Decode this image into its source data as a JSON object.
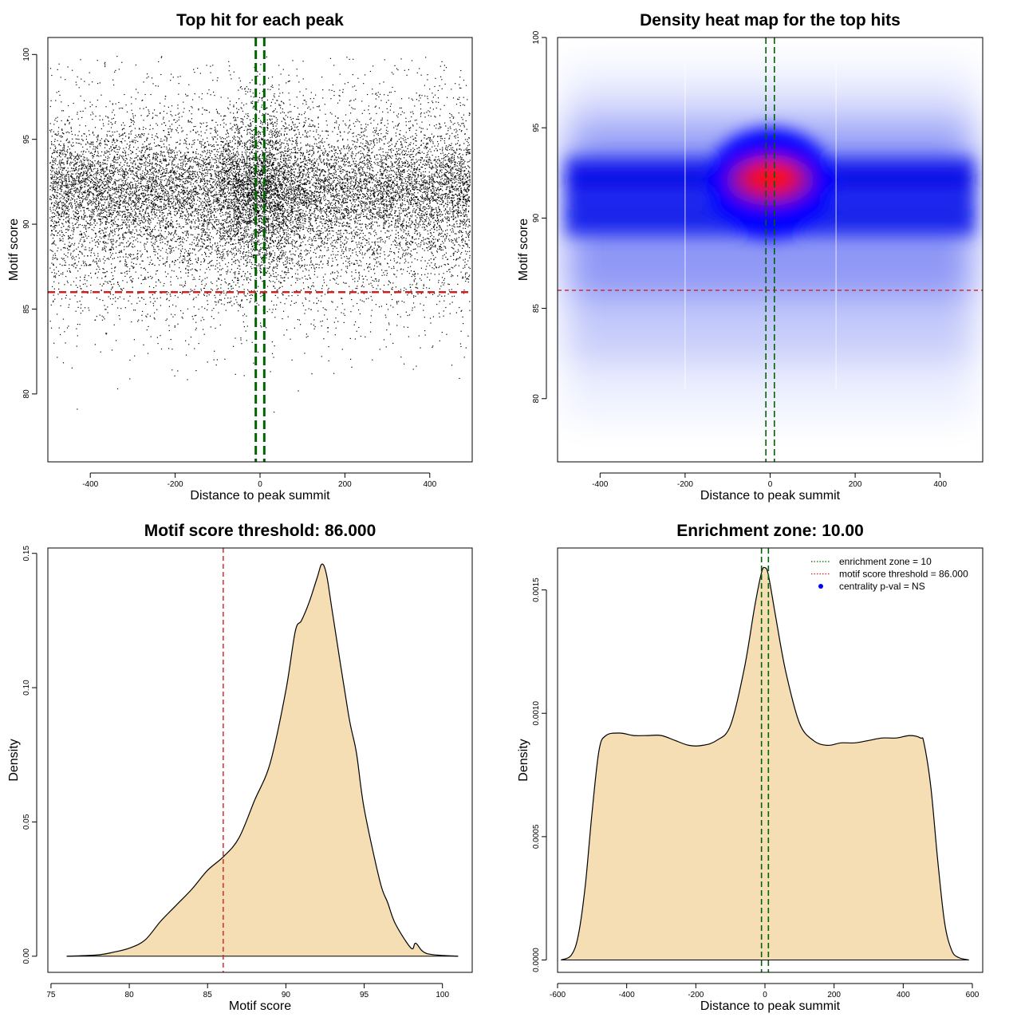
{
  "colors": {
    "threshold_line": "#cc2222",
    "zone_line": "#006400",
    "density_fill": "#f5deb3",
    "heat_low": "#ffffff",
    "heat_mid": "#0000ff",
    "heat_high": "#ff0000",
    "pval_marker": "#0000ff"
  },
  "chart_data": [
    {
      "id": "scatter",
      "type": "scatter",
      "title": "Top hit for each peak",
      "xlabel": "Distance to peak summit",
      "ylabel": "Motif score",
      "xlim": [
        -500,
        500
      ],
      "ylim": [
        76,
        101
      ],
      "xticks": [
        -400,
        -200,
        0,
        200,
        400
      ],
      "yticks": [
        80,
        85,
        90,
        95,
        100
      ],
      "threshold": 86,
      "zone_x": [
        -10,
        10
      ],
      "point_count": 16000,
      "grid": false
    },
    {
      "id": "heatmap",
      "type": "heatmap",
      "title": "Density heat map for the top hits",
      "xlabel": "Distance to peak summit",
      "ylabel": "Motif score",
      "xlim": [
        -500,
        500
      ],
      "ylim": [
        76.5,
        100
      ],
      "xticks": [
        -400,
        -200,
        0,
        200,
        400
      ],
      "yticks": [
        80,
        85,
        90,
        95,
        100
      ],
      "threshold": 86,
      "zone_x": [
        -10,
        10
      ],
      "grid": false
    },
    {
      "id": "score-density",
      "type": "area",
      "title": "Motif score threshold: 86.000",
      "xlabel": "Motif score",
      "ylabel": "Density",
      "xlim": [
        74.8,
        101.9
      ],
      "ylim": [
        -0.006,
        0.152
      ],
      "xticks": [
        75,
        80,
        85,
        90,
        95,
        100
      ],
      "yticks": [
        0.0,
        0.05,
        0.1,
        0.15
      ],
      "ytick_labels": [
        "0.00",
        "0.05",
        "0.10",
        "0.15"
      ],
      "threshold": 86,
      "x": [
        76,
        78,
        79,
        80,
        81,
        82,
        83,
        84,
        85,
        86,
        87,
        88,
        89,
        90,
        90.6,
        91,
        91.5,
        92,
        92.3,
        92.6,
        93,
        94,
        94.5,
        95,
        96,
        96.5,
        97,
        98,
        98.3,
        99,
        101
      ],
      "y": [
        0.0,
        0.0005,
        0.0015,
        0.003,
        0.006,
        0.013,
        0.019,
        0.025,
        0.032,
        0.037,
        0.044,
        0.058,
        0.072,
        0.099,
        0.121,
        0.125,
        0.132,
        0.141,
        0.146,
        0.142,
        0.127,
        0.09,
        0.076,
        0.055,
        0.028,
        0.02,
        0.012,
        0.003,
        0.0048,
        0.001,
        0.0
      ],
      "grid": false
    },
    {
      "id": "distance-density",
      "type": "area",
      "title": "Enrichment zone: 10.00",
      "xlabel": "Distance to peak summit",
      "ylabel": "Density",
      "xlim": [
        -600,
        630
      ],
      "ylim": [
        -5e-05,
        0.00167
      ],
      "xticks": [
        -600,
        -400,
        -200,
        0,
        200,
        400,
        600
      ],
      "yticks": [
        0.0,
        0.0005,
        0.001,
        0.0015
      ],
      "ytick_labels": [
        "0.0000",
        "0.0005",
        "0.0010",
        "0.0015"
      ],
      "zone_x": [
        -10,
        10
      ],
      "x": [
        -590,
        -560,
        -540,
        -520,
        -500,
        -480,
        -460,
        -420,
        -380,
        -340,
        -300,
        -260,
        -220,
        -180,
        -140,
        -100,
        -60,
        -30,
        -10,
        0,
        10,
        30,
        60,
        100,
        140,
        180,
        220,
        260,
        300,
        340,
        380,
        420,
        450,
        460,
        480,
        500,
        520,
        540,
        560,
        590
      ],
      "y": [
        0.0,
        2e-05,
        0.0001,
        0.0003,
        0.0006,
        0.00085,
        0.00091,
        0.00092,
        0.00091,
        0.00091,
        0.00091,
        0.00089,
        0.00087,
        0.00087,
        0.00089,
        0.00095,
        0.00118,
        0.00143,
        0.00157,
        0.00159,
        0.00156,
        0.0014,
        0.00117,
        0.00096,
        0.00089,
        0.00087,
        0.00088,
        0.00088,
        0.00089,
        0.0009,
        0.0009,
        0.00091,
        0.0009,
        0.00088,
        0.0007,
        0.0004,
        0.00015,
        4e-05,
        1e-05,
        0.0
      ],
      "grid": false,
      "legend": {
        "position": "top-right",
        "entries": [
          {
            "label": "enrichment zone = 10",
            "style": "dotted",
            "color": "#006400"
          },
          {
            "label": "motif score threshold = 86.000",
            "style": "dotted",
            "color": "#cc2222"
          },
          {
            "label": "centrality p-val = NS",
            "style": "point",
            "color": "#0000ff"
          }
        ]
      }
    }
  ]
}
